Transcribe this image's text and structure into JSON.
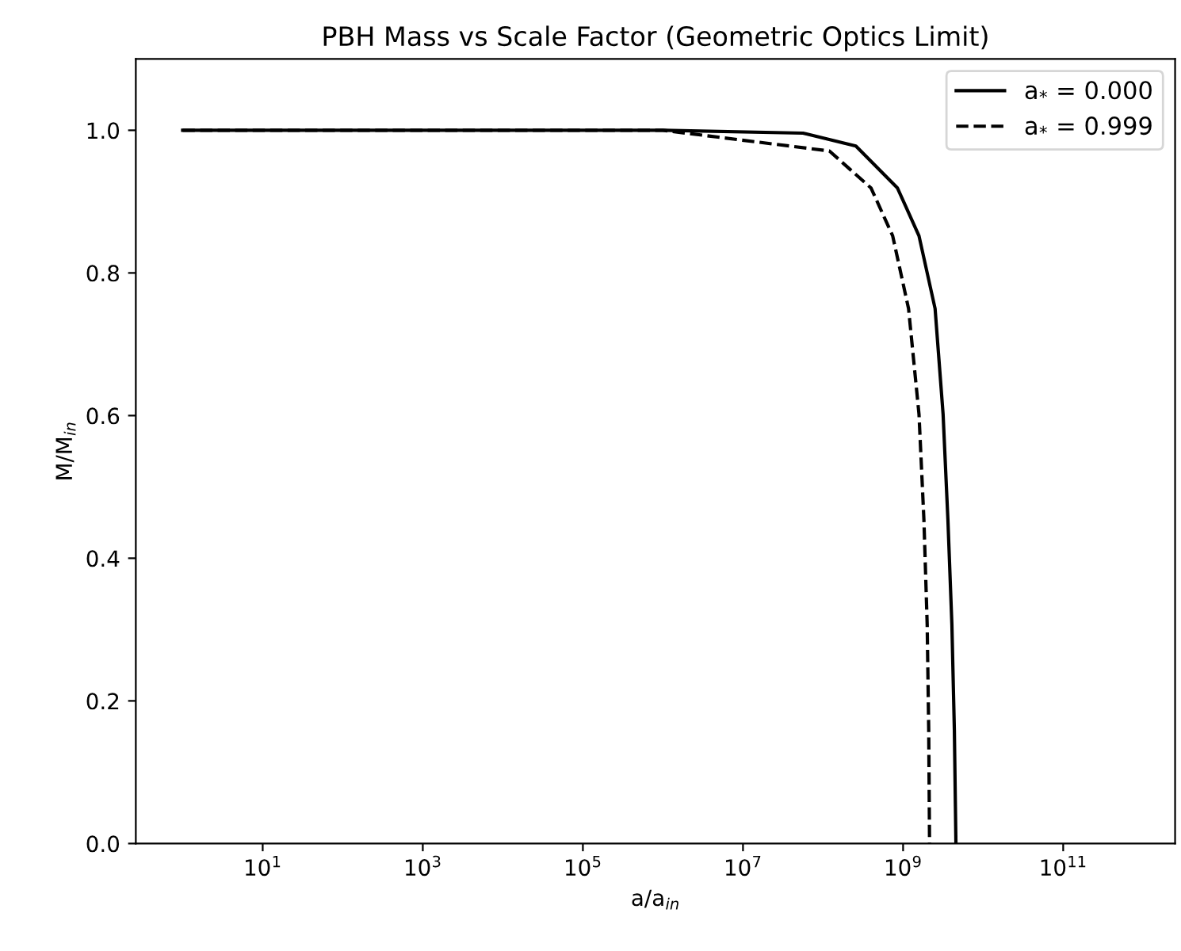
{
  "chart_data": {
    "type": "line",
    "title": "PBH Mass vs Scale Factor (Geometric Optics Limit)",
    "xlabel": "a/a$_{in}$",
    "ylabel": "M/M$_{in}$",
    "log": "x",
    "xlim": [
      0.26,
      2500000000000.0
    ],
    "ylim": [
      0,
      1.1
    ],
    "xticks": [
      {
        "value": 10,
        "label": "10$^{1}$"
      },
      {
        "value": 1000,
        "label": "10$^{3}$"
      },
      {
        "value": 100000,
        "label": "10$^{5}$"
      },
      {
        "value": 10000000,
        "label": "10$^{7}$"
      },
      {
        "value": 1000000000,
        "label": "10$^{9}$"
      },
      {
        "value": 100000000000,
        "label": "10$^{11}$"
      }
    ],
    "yticks": [
      {
        "value": 0,
        "label": "0.0"
      },
      {
        "value": 0.2,
        "label": "0.2"
      },
      {
        "value": 0.4,
        "label": "0.4"
      },
      {
        "value": 0.6,
        "label": "0.6"
      },
      {
        "value": 0.8,
        "label": "0.8"
      },
      {
        "value": 1.0,
        "label": "1.0"
      }
    ],
    "grid": false,
    "legend": "top right",
    "marker": "none",
    "series": [
      {
        "name": "a$_{*}$ = 0.000",
        "color": "#000000",
        "line_style": "solid",
        "x": [
          1,
          1000000,
          56200000,
          257000000,
          851000000,
          1580000000,
          2510000000,
          3160000000,
          3630000000,
          4070000000,
          4370000000,
          4570000000
        ],
        "values": [
          1,
          1,
          0.996,
          0.978,
          0.919,
          0.852,
          0.75,
          0.602,
          0.454,
          0.307,
          0.159,
          0
        ]
      },
      {
        "name": "a$_{*}$ = 0.999",
        "color": "#000000",
        "line_style": "dashed",
        "x": [
          1,
          1000000,
          120000000,
          398000000,
          741000000,
          1170000000,
          1580000000,
          1820000000,
          2000000000,
          2090000000,
          2140000000
        ],
        "values": [
          1,
          1,
          0.971,
          0.919,
          0.852,
          0.75,
          0.602,
          0.454,
          0.307,
          0.159,
          0
        ]
      }
    ]
  }
}
